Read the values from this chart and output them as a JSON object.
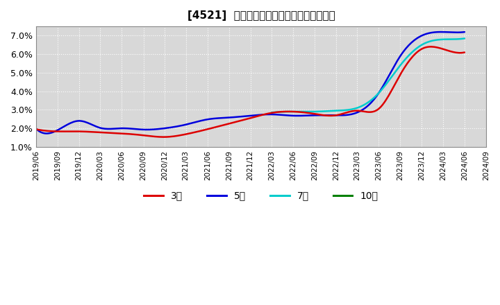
{
  "title": "[4521]  経常利益マージンの標準偏差の推移",
  "background_color": "#ffffff",
  "plot_background_color": "#d8d8d8",
  "grid_color": "#ffffff",
  "ylim": [
    0.01,
    0.075
  ],
  "yticks": [
    0.01,
    0.02,
    0.03,
    0.04,
    0.05,
    0.06,
    0.07
  ],
  "ytick_labels": [
    "1.0%",
    "2.0%",
    "3.0%",
    "4.0%",
    "5.0%",
    "6.0%",
    "7.0%"
  ],
  "series": {
    "3year": {
      "color": "#dd0000",
      "label": "3年",
      "linewidth": 1.8,
      "dates": [
        "2019/06",
        "2019/09",
        "2019/12",
        "2020/03",
        "2020/06",
        "2020/09",
        "2020/12",
        "2021/03",
        "2021/06",
        "2021/09",
        "2021/12",
        "2022/03",
        "2022/06",
        "2022/09",
        "2022/12",
        "2023/03",
        "2023/06",
        "2023/09",
        "2023/12",
        "2024/03",
        "2024/06"
      ],
      "values": [
        0.0195,
        0.0183,
        0.0183,
        0.0178,
        0.0172,
        0.0162,
        0.0153,
        0.0168,
        0.0195,
        0.0225,
        0.0255,
        0.0283,
        0.029,
        0.0278,
        0.027,
        0.0295,
        0.0305,
        0.049,
        0.0628,
        0.0628,
        0.061
      ]
    },
    "5year": {
      "color": "#0000dd",
      "label": "5年",
      "linewidth": 1.8,
      "dates": [
        "2019/06",
        "2019/09",
        "2019/12",
        "2020/03",
        "2020/06",
        "2020/09",
        "2020/12",
        "2021/03",
        "2021/06",
        "2021/09",
        "2021/12",
        "2022/03",
        "2022/06",
        "2022/09",
        "2022/12",
        "2023/03",
        "2023/06",
        "2023/09",
        "2023/12",
        "2024/03",
        "2024/06"
      ],
      "values": [
        0.0198,
        0.019,
        0.024,
        0.0202,
        0.02,
        0.0193,
        0.02,
        0.022,
        0.0248,
        0.0258,
        0.0268,
        0.0275,
        0.0268,
        0.027,
        0.027,
        0.0285,
        0.039,
        0.059,
        0.07,
        0.072,
        0.072
      ]
    },
    "7year": {
      "color": "#00cccc",
      "label": "7年",
      "linewidth": 1.8,
      "dates": [
        "2022/03",
        "2022/06",
        "2022/09",
        "2022/12",
        "2023/03",
        "2023/06",
        "2023/09",
        "2023/12",
        "2024/03",
        "2024/06"
      ],
      "values": [
        0.0285,
        0.029,
        0.029,
        0.0295,
        0.031,
        0.039,
        0.054,
        0.065,
        0.068,
        0.0685
      ]
    },
    "10year": {
      "color": "#008000",
      "label": "10年",
      "linewidth": 1.8,
      "dates": [],
      "values": []
    }
  },
  "legend": {
    "entries": [
      "3年",
      "5年",
      "7年",
      "10年"
    ],
    "colors": [
      "#dd0000",
      "#0000dd",
      "#00cccc",
      "#008000"
    ]
  },
  "xstart": "2019/06",
  "xend": "2024/09"
}
